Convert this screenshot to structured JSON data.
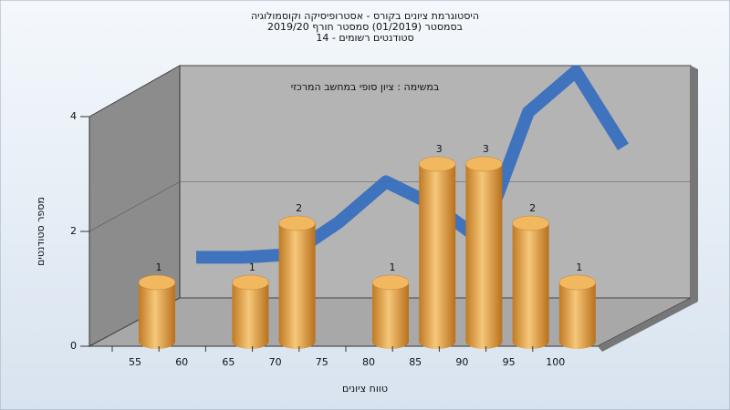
{
  "chart_data": {
    "type": "bar",
    "title": [
      "היסטוגרמת ציונים בקורס - אסטרופיסיקה וקוסמולוגיה",
      "בסמסטר (01/2019)  סמסטר חורף 2019/20",
      "סטודנטים רשומים - 14"
    ],
    "annotation": "במשימה : ציון סופי במחשב המרכזי",
    "x_label": "טווח ציונים",
    "y_label": "מספר סטודנטים",
    "categories": [
      "55",
      "60",
      "65",
      "70",
      "75",
      "80",
      "85",
      "90",
      "95",
      "100"
    ],
    "values": [
      1,
      null,
      1,
      2,
      null,
      1,
      3,
      3,
      2,
      1
    ],
    "color": "#e8a64a",
    "curve_values": [
      0.7,
      0.7,
      0.75,
      1.3,
      2.0,
      1.6,
      1.0,
      3.2,
      3.9,
      2.6
    ],
    "curve_color": "#336bbf",
    "ylim": [
      0,
      4
    ],
    "yticks": [
      0,
      2,
      4
    ],
    "grid": true
  }
}
